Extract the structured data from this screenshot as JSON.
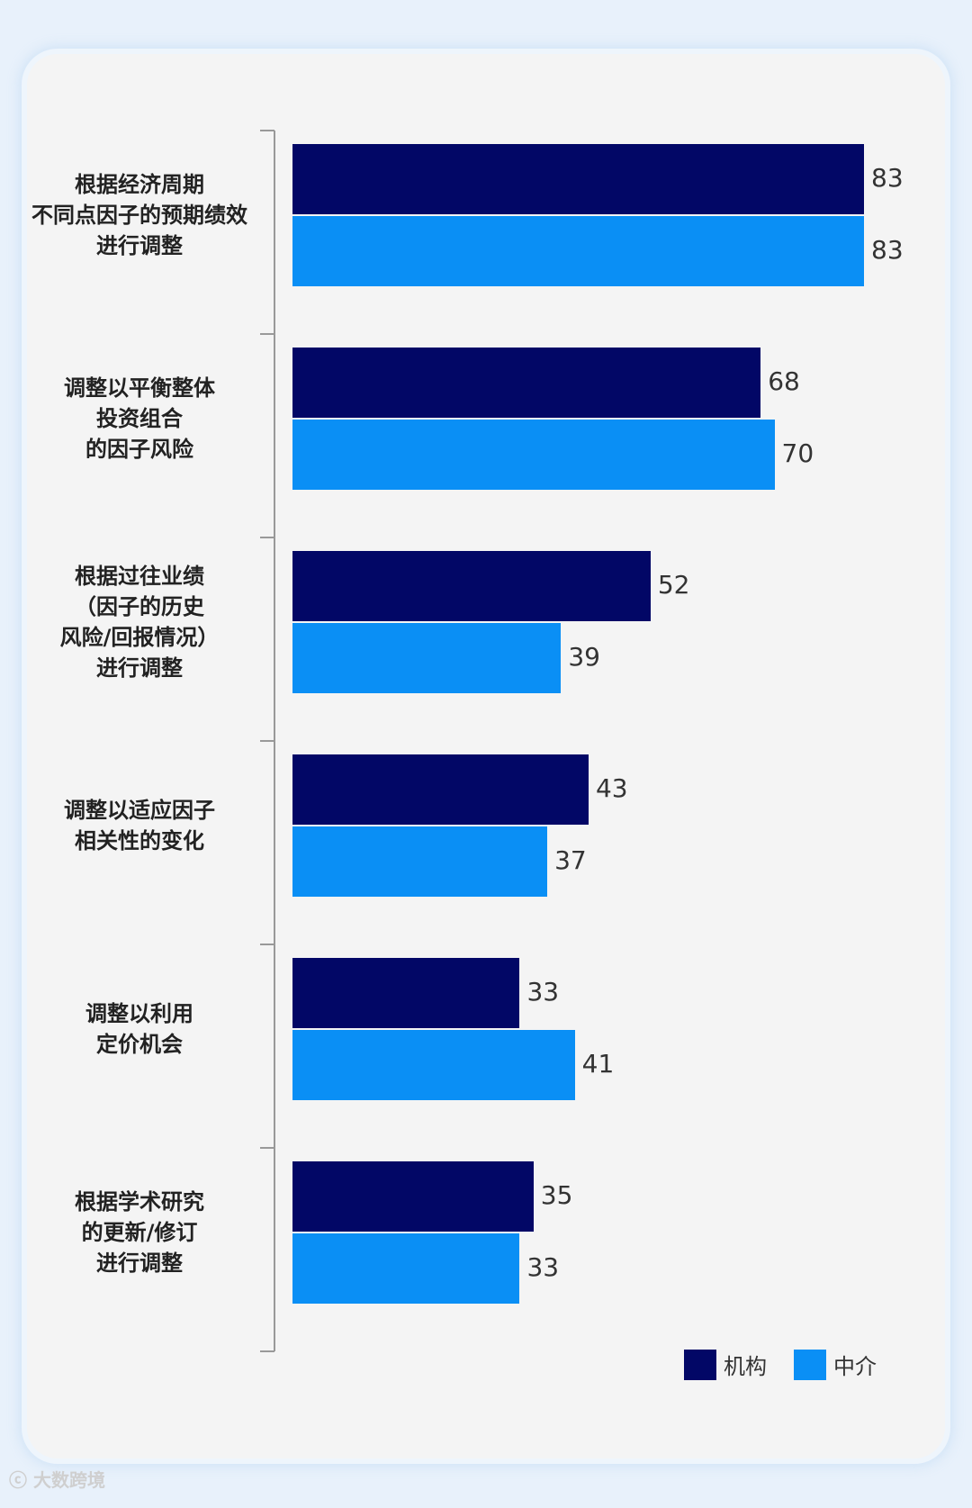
{
  "chart_data": {
    "type": "bar",
    "orientation": "horizontal",
    "categories": [
      "根据经济周期\n不同点因子的预期绩效\n进行调整",
      "调整以平衡整体\n投资组合\n的因子风险",
      "根据过往业绩\n（因子的历史\n风险/回报情况）\n进行调整",
      "调整以适应因子\n相关性的变化",
      "调整以利用\n定价机会",
      "根据学术研究\n的更新/修订\n进行调整"
    ],
    "series": [
      {
        "name": "机构",
        "values": [
          83,
          68,
          52,
          43,
          33,
          35
        ],
        "color": "#020766"
      },
      {
        "name": "中介",
        "values": [
          83,
          70,
          39,
          37,
          41,
          33
        ],
        "color": "#0a8ff5"
      }
    ],
    "xlim": [
      0,
      83
    ],
    "legend": "bottom-right"
  },
  "watermark": "大数跨境"
}
